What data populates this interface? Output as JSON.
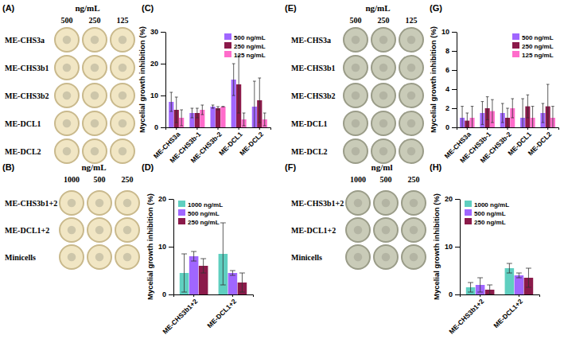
{
  "image_panels": [
    {
      "label": "(A)",
      "unit": "ng/mL",
      "columns": [
        500,
        250,
        125
      ],
      "rows": [
        "ME-CHS3a",
        "ME-CHS3b1",
        "ME-CHS3b2",
        "ME-DCL1",
        "ME-DCL2"
      ]
    },
    {
      "label": "(B)",
      "unit": "ng/mL",
      "columns": [
        1000,
        500,
        250
      ],
      "rows": [
        "ME-CHS3b1+2",
        "ME-DCL1+2",
        "Minicells"
      ]
    },
    {
      "label": "(E)",
      "unit": "ng/mL",
      "columns": [
        500,
        250,
        125
      ],
      "rows": [
        "ME-CHS3a",
        "ME-CHS3b1",
        "ME-CHS3b2",
        "ME-DCL1",
        "ME-DCL2"
      ]
    },
    {
      "label": "(F)",
      "unit": "ng/ml",
      "columns": [
        1000,
        500,
        250
      ],
      "rows": [
        "ME-CHS3b1+2",
        "ME-DCL1+2",
        "Minicells"
      ]
    }
  ],
  "chart_data": [
    {
      "type": "bar",
      "panel_label": "(C)",
      "y_label": "Mycelial growth inhibition (%)",
      "categories": [
        "ME-CHS3a",
        "ME-CHS3b-1",
        "ME-CHS3b-2",
        "ME-DCL1",
        "ME-DCL2"
      ],
      "series": [
        {
          "name": "500 ng/mL",
          "color": "#a066ff",
          "values": [
            8,
            4.5,
            6.5,
            15,
            6.5
          ],
          "errors": [
            3,
            1.5,
            0.5,
            5,
            8
          ]
        },
        {
          "name": "250 ng/mL",
          "color": "#8b1a4a",
          "values": [
            5.5,
            4.5,
            6,
            13.5,
            8.5
          ],
          "errors": [
            4,
            1.5,
            0.5,
            9,
            7
          ]
        },
        {
          "name": "125 ng/mL",
          "color": "#ff6ccb",
          "values": [
            3,
            5.5,
            6.5,
            2.5,
            2.5
          ],
          "errors": [
            2.5,
            1.5,
            0,
            2,
            2
          ]
        }
      ],
      "ylim": [
        0,
        30
      ],
      "yticks": [
        0,
        10,
        20,
        30
      ],
      "legend": "upper right"
    },
    {
      "type": "bar",
      "panel_label": "(D)",
      "y_label": "Mycelial growth inhibition (%)",
      "categories": [
        "ME-CHS3b1+2",
        "ME-DCL1+2"
      ],
      "series": [
        {
          "name": "1000 ng/mL",
          "color": "#5fcfc0",
          "values": [
            4.5,
            8.5
          ],
          "errors": [
            4,
            6.5
          ]
        },
        {
          "name": "500 ng/mL",
          "color": "#a066ff",
          "values": [
            8,
            4.5
          ],
          "errors": [
            1,
            0.5
          ]
        },
        {
          "name": "250 ng/mL",
          "color": "#8b1a4a",
          "values": [
            6,
            2.5
          ],
          "errors": [
            1.5,
            2
          ]
        }
      ],
      "ylim": [
        0,
        20
      ],
      "yticks": [
        0,
        10,
        20
      ],
      "legend": "upper left"
    },
    {
      "type": "bar",
      "panel_label": "(G)",
      "y_label": "Mycelial growth inhibition (%)",
      "categories": [
        "ME-CHS3a",
        "ME-CHS3b-1",
        "ME-CHS3b-2",
        "ME-DCL1",
        "ME-DCL2"
      ],
      "series": [
        {
          "name": "500 ng/mL",
          "color": "#a066ff",
          "values": [
            1,
            1.5,
            1.5,
            1,
            1.5
          ],
          "errors": [
            1.2,
            1.2,
            1,
            2,
            1
          ]
        },
        {
          "name": "250 ng/mL",
          "color": "#8b1a4a",
          "values": [
            0.7,
            2,
            1,
            2.2,
            2.2
          ],
          "errors": [
            0.8,
            1.2,
            1,
            1.2,
            2.3
          ]
        },
        {
          "name": "125 ng/mL",
          "color": "#ff6ccb",
          "values": [
            1,
            1.7,
            2,
            1,
            1
          ],
          "errors": [
            1.2,
            1.2,
            1,
            1.2,
            1.2
          ]
        }
      ],
      "ylim": [
        0,
        10
      ],
      "yticks": [
        0,
        2,
        4,
        6,
        8,
        10
      ],
      "legend": "upper right"
    },
    {
      "type": "bar",
      "panel_label": "(H)",
      "y_label": "Mycelial growth inhibition (%)",
      "categories": [
        "ME-CHS3b1+2",
        "ME-DCL1+2"
      ],
      "series": [
        {
          "name": "1000 ng/mL",
          "color": "#5fcfc0",
          "values": [
            1.5,
            5.5
          ],
          "errors": [
            1,
            1
          ]
        },
        {
          "name": "500 ng/mL",
          "color": "#a066ff",
          "values": [
            2,
            4
          ],
          "errors": [
            1.5,
            0.5
          ]
        },
        {
          "name": "250 ng/mL",
          "color": "#8b1a4a",
          "values": [
            1,
            3.5
          ],
          "errors": [
            1,
            2
          ]
        }
      ],
      "ylim": [
        0,
        20
      ],
      "yticks": [
        0,
        10,
        20
      ],
      "legend": "upper left"
    }
  ]
}
